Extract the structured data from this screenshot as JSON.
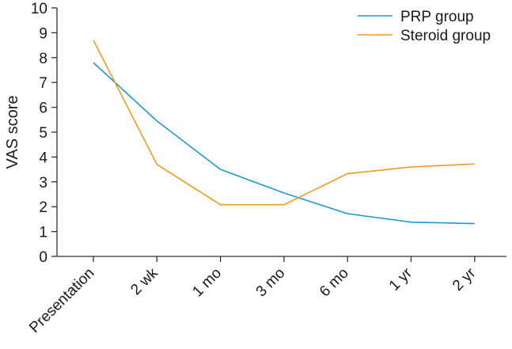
{
  "chart_data": {
    "type": "line",
    "categories": [
      "Presentation",
      "2 wk",
      "1 mo",
      "3 mo",
      "6 mo",
      "1 yr",
      "2 yr"
    ],
    "series": [
      {
        "name": "PRP group",
        "color": "#1a9ad6",
        "values": [
          7.8,
          5.45,
          3.5,
          2.55,
          1.72,
          1.38,
          1.32
        ]
      },
      {
        "name": "Steroid group",
        "color": "#f39a1d",
        "values": [
          8.7,
          3.7,
          2.08,
          2.08,
          3.33,
          3.6,
          3.72
        ]
      }
    ],
    "ylabel": "VAS score",
    "xlabel": "",
    "ylim": [
      0,
      10
    ],
    "yticks": [
      0,
      1,
      2,
      3,
      4,
      5,
      6,
      7,
      8,
      9,
      10
    ],
    "grid": false,
    "legend": "top-right"
  }
}
